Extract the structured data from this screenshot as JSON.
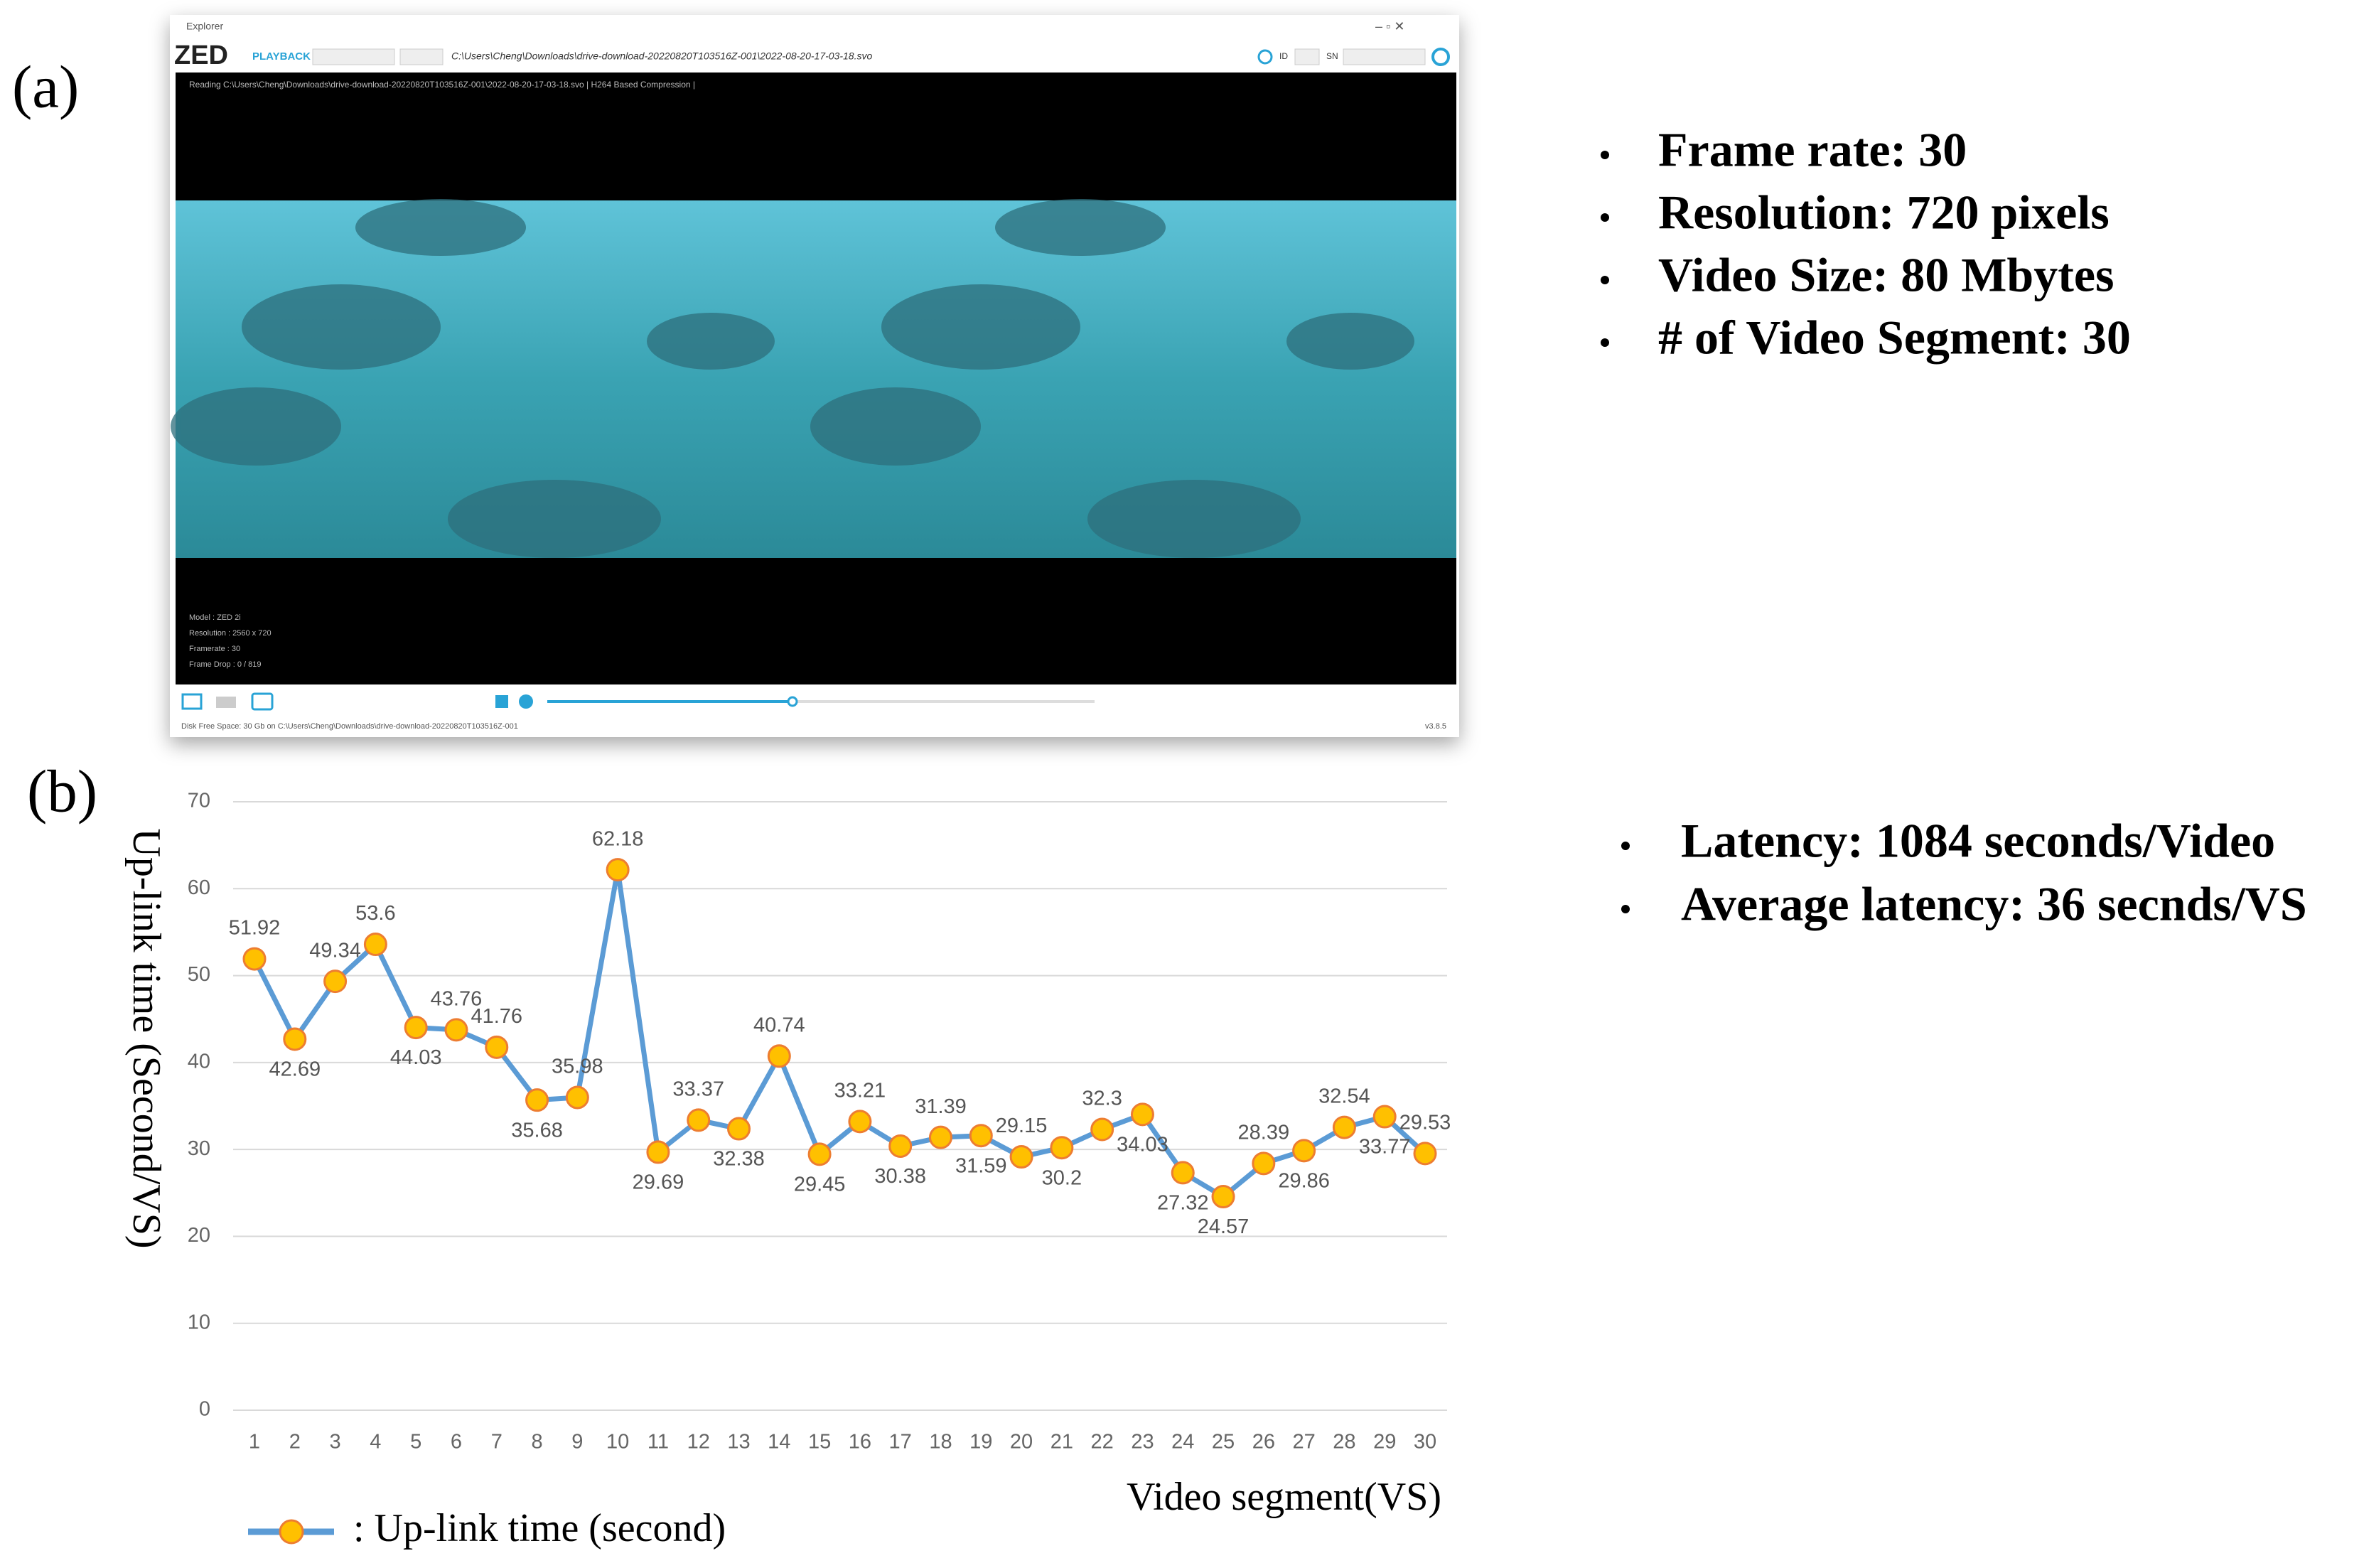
{
  "panel_labels": [
    "(a)",
    "(b)"
  ],
  "screenshot": {
    "window_title": "Explorer",
    "logo": "ZED",
    "mode": "PLAYBACK",
    "path": "C:\\Users\\Cheng\\Downloads\\drive-download-20220820T103516Z-001\\2022-08-20-17-03-18.svo",
    "id_label": "ID",
    "sn_label": "SN",
    "reading": "Reading   C:\\Users\\Cheng\\Downloads\\drive-download-20220820T103516Z-001\\2022-08-20-17-03-18.svo  | H264 Based Compression |",
    "info": [
      "Model : ZED 2i",
      "Resolution : 2560 x 720",
      "Framerate : 30",
      "Frame Drop : 0 / 819"
    ],
    "status": "Disk Free Space: 30 Gb  on C:\\Users\\Cheng\\Downloads\\drive-download-20220820T103516Z-001",
    "version": "v3.8.5"
  },
  "specs": [
    "Frame rate: 30",
    "Resolution: 720 pixels",
    "Video Size: 80 Mbytes",
    "# of Video Segment: 30"
  ],
  "latency": [
    "Latency: 1084 seconds/Video",
    "Average latency: 36 secnds/VS"
  ],
  "chart_data": {
    "type": "line",
    "x_label": "Video segment(VS)",
    "y_label": "Up-link time (Second/VS)",
    "categories": [
      "1",
      "2",
      "3",
      "4",
      "5",
      "6",
      "7",
      "8",
      "9",
      "10",
      "11",
      "12",
      "13",
      "14",
      "15",
      "16",
      "17",
      "18",
      "19",
      "20",
      "21",
      "22",
      "23",
      "24",
      "25",
      "26",
      "27",
      "28",
      "29",
      "30"
    ],
    "series": [
      {
        "name": ": Up-link time (second)",
        "color": "#5b9bd5",
        "marker_color": "#ffc000",
        "values": [
          51.92,
          42.69,
          49.34,
          53.6,
          44.03,
          43.76,
          41.76,
          35.68,
          35.98,
          62.18,
          29.69,
          33.37,
          32.38,
          40.74,
          29.45,
          33.21,
          30.38,
          31.39,
          31.59,
          29.15,
          30.2,
          32.3,
          34.03,
          27.32,
          24.57,
          28.39,
          29.86,
          32.54,
          33.77,
          29.53
        ]
      }
    ],
    "ylim": [
      0,
      70
    ],
    "yticks": [
      0,
      10,
      20,
      30,
      40,
      50,
      60,
      70
    ],
    "grid": true,
    "data_labels": true
  }
}
